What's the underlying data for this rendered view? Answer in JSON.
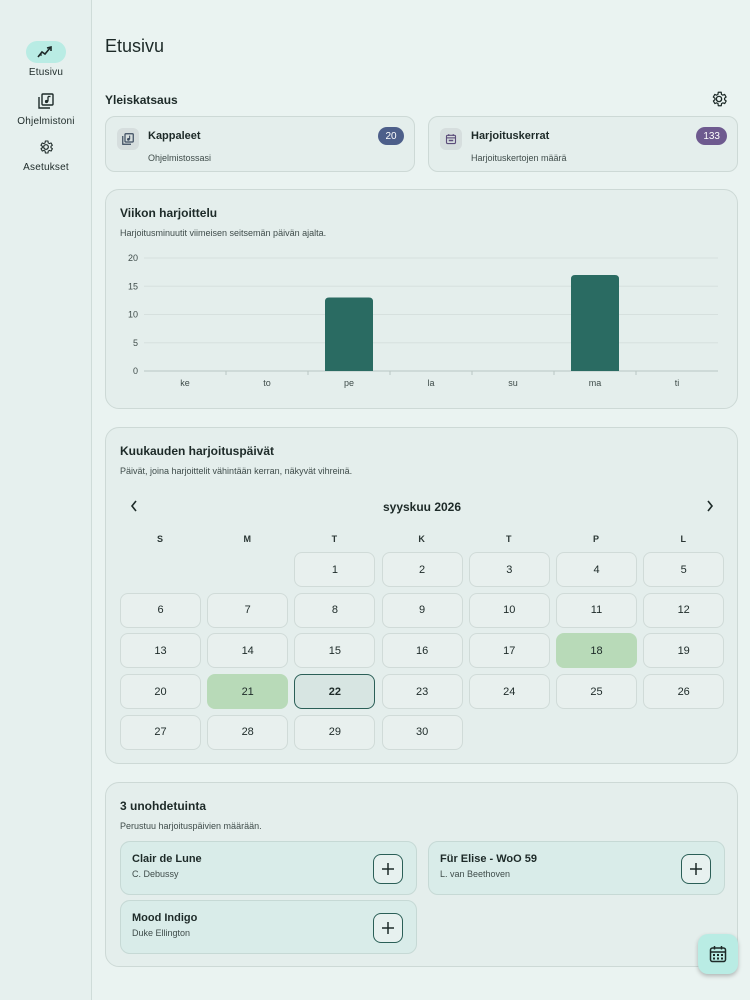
{
  "nav": {
    "items": [
      {
        "label": "Etusivu",
        "icon": "trending-up-icon",
        "active": true
      },
      {
        "label": "Ohjelmistoni",
        "icon": "library-music-icon",
        "active": false
      },
      {
        "label": "Asetukset",
        "icon": "gear-icon",
        "active": false
      }
    ]
  },
  "page": {
    "title": "Etusivu"
  },
  "overview": {
    "title": "Yleiskatsaus",
    "cards": [
      {
        "title": "Kappaleet",
        "subtitle": "Ohjelmistossasi",
        "count": "20",
        "badge_color": "#4d5f8a",
        "icon": "library-music-icon"
      },
      {
        "title": "Harjoituskerrat",
        "subtitle": "Harjoituskertojen määrä",
        "count": "133",
        "badge_color": "#6e5a8f",
        "icon": "calendar-icon"
      }
    ]
  },
  "weekly": {
    "title": "Viikon harjoittelu",
    "subtitle": "Harjoitusminuutit viimeisen seitsemän päivän ajalta."
  },
  "chart_data": {
    "type": "bar",
    "categories": [
      "ke",
      "to",
      "pe",
      "la",
      "su",
      "ma",
      "ti"
    ],
    "values": [
      0,
      0,
      13,
      0,
      0,
      17,
      0
    ],
    "ylim": [
      0,
      20
    ],
    "yticks": [
      "0",
      "5",
      "10",
      "15",
      "20"
    ],
    "bar_color": "#2a6b62",
    "grid": true
  },
  "monthly": {
    "title": "Kuukauden harjoituspäivät",
    "subtitle": "Päivät, joina harjoittelit vähintään kerran, näkyvät vihreinä.",
    "month_label": "syyskuu 2026",
    "weekdays": [
      "S",
      "M",
      "T",
      "K",
      "T",
      "P",
      "L"
    ],
    "first_weekday_index": 2,
    "days_in_month": 30,
    "practiced_days": [
      18,
      21
    ],
    "today": 22
  },
  "forgotten": {
    "title": "3 unohdetuinta",
    "subtitle": "Perustuu harjoituspäivien määrään.",
    "items": [
      {
        "title": "Clair de Lune",
        "artist": "C. Debussy"
      },
      {
        "title": "Für Elise - WoO 59",
        "artist": "L. van Beethoven"
      },
      {
        "title": "Mood Indigo",
        "artist": "Duke Ellington"
      }
    ]
  }
}
